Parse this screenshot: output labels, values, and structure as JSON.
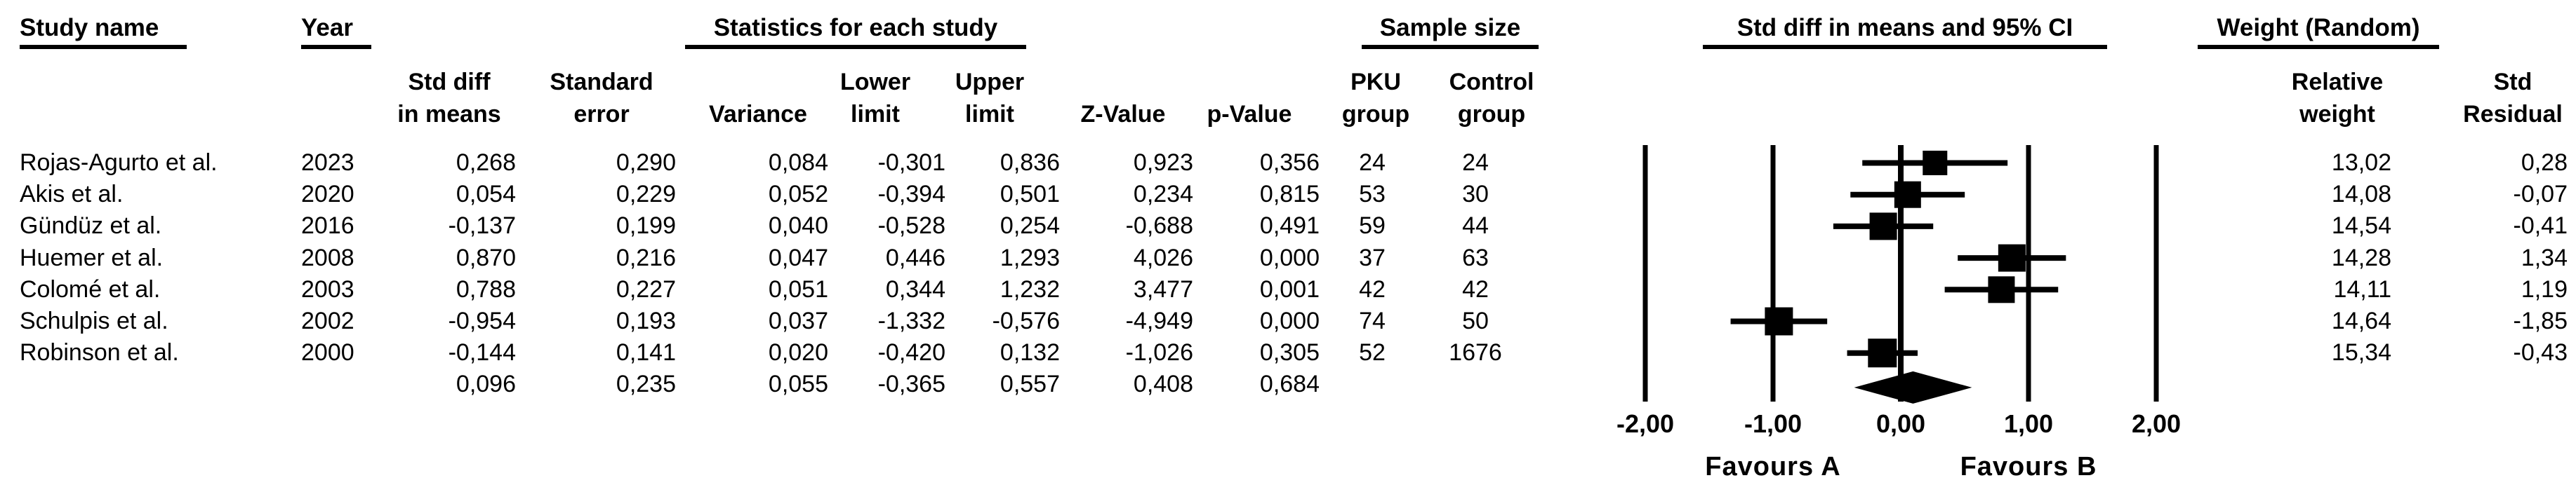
{
  "colors": {
    "ink": "#000000",
    "background": "#ffffff"
  },
  "header": {
    "groups": [
      {
        "id": "study",
        "label": "Study name"
      },
      {
        "id": "year",
        "label": "Year"
      },
      {
        "id": "stats",
        "label": "Statistics for each study"
      },
      {
        "id": "sample",
        "label": "Sample size"
      },
      {
        "id": "plot",
        "label": "Std diff in means and 95% CI"
      },
      {
        "id": "weight",
        "label": "Weight (Random)"
      }
    ],
    "columns": [
      {
        "id": "std_diff",
        "lines": [
          "Std diff",
          "in means"
        ]
      },
      {
        "id": "std_err",
        "lines": [
          "Standard",
          "error"
        ]
      },
      {
        "id": "variance",
        "lines": [
          "",
          "Variance"
        ]
      },
      {
        "id": "lower",
        "lines": [
          "Lower",
          "limit"
        ]
      },
      {
        "id": "upper",
        "lines": [
          "Upper",
          "limit"
        ]
      },
      {
        "id": "z",
        "lines": [
          "",
          "Z-Value"
        ]
      },
      {
        "id": "p",
        "lines": [
          "",
          "p-Value"
        ]
      },
      {
        "id": "pku",
        "lines": [
          "PKU",
          "group"
        ]
      },
      {
        "id": "control",
        "lines": [
          "Control",
          "group"
        ]
      },
      {
        "id": "rel_weight",
        "lines": [
          "Relative",
          "weight"
        ]
      },
      {
        "id": "std_resid",
        "lines": [
          "Std",
          "Residual"
        ]
      }
    ]
  },
  "number_format": {
    "decimal_separator": ",",
    "stat_decimals": 3,
    "weight_decimals": 2
  },
  "chart_data": {
    "type": "forest",
    "effect_measure": "Std diff in means and 95% CI",
    "xlim": [
      -2,
      2
    ],
    "x_ticks": [
      {
        "value": -2,
        "label": "-2,00"
      },
      {
        "value": -1,
        "label": "-1,00"
      },
      {
        "value": 0,
        "label": "0,00"
      },
      {
        "value": 1,
        "label": "1,00"
      },
      {
        "value": 2,
        "label": "2,00"
      }
    ],
    "footer_labels": {
      "left": "Favours A",
      "right": "Favours B"
    },
    "studies": [
      {
        "name": "Rojas-Agurto et al.",
        "year": "2023",
        "std_diff": 0.268,
        "std_err": 0.29,
        "variance": 0.084,
        "lower": -0.301,
        "upper": 0.836,
        "z": 0.923,
        "p": 0.356,
        "pku_n": 24,
        "control_n": 24,
        "relative_weight": 13.02,
        "std_residual": 0.28
      },
      {
        "name": "Akis et al.",
        "year": "2020",
        "std_diff": 0.054,
        "std_err": 0.229,
        "variance": 0.052,
        "lower": -0.394,
        "upper": 0.501,
        "z": 0.234,
        "p": 0.815,
        "pku_n": 53,
        "control_n": 30,
        "relative_weight": 14.08,
        "std_residual": -0.07
      },
      {
        "name": "Gündüz et al.",
        "year": "2016",
        "std_diff": -0.137,
        "std_err": 0.199,
        "variance": 0.04,
        "lower": -0.528,
        "upper": 0.254,
        "z": -0.688,
        "p": 0.491,
        "pku_n": 59,
        "control_n": 44,
        "relative_weight": 14.54,
        "std_residual": -0.41
      },
      {
        "name": "Huemer et al.",
        "year": "2008",
        "std_diff": 0.87,
        "std_err": 0.216,
        "variance": 0.047,
        "lower": 0.446,
        "upper": 1.293,
        "z": 4.026,
        "p": 0.0,
        "pku_n": 37,
        "control_n": 63,
        "relative_weight": 14.28,
        "std_residual": 1.34
      },
      {
        "name": "Colomé et al.",
        "year": "2003",
        "std_diff": 0.788,
        "std_err": 0.227,
        "variance": 0.051,
        "lower": 0.344,
        "upper": 1.232,
        "z": 3.477,
        "p": 0.001,
        "pku_n": 42,
        "control_n": 42,
        "relative_weight": 14.11,
        "std_residual": 1.19
      },
      {
        "name": "Schulpis et al.",
        "year": "2002",
        "std_diff": -0.954,
        "std_err": 0.193,
        "variance": 0.037,
        "lower": -1.332,
        "upper": -0.576,
        "z": -4.949,
        "p": 0.0,
        "pku_n": 74,
        "control_n": 50,
        "relative_weight": 14.64,
        "std_residual": -1.85
      },
      {
        "name": "Robinson et al.",
        "year": "2000",
        "std_diff": -0.144,
        "std_err": 0.141,
        "variance": 0.02,
        "lower": -0.42,
        "upper": 0.132,
        "z": -1.026,
        "p": 0.305,
        "pku_n": 52,
        "control_n": 1676,
        "relative_weight": 15.34,
        "std_residual": -0.43
      }
    ],
    "pooled": {
      "std_diff": 0.096,
      "std_err": 0.235,
      "variance": 0.055,
      "lower": -0.365,
      "upper": 0.557,
      "z": 0.408,
      "p": 0.684
    }
  }
}
